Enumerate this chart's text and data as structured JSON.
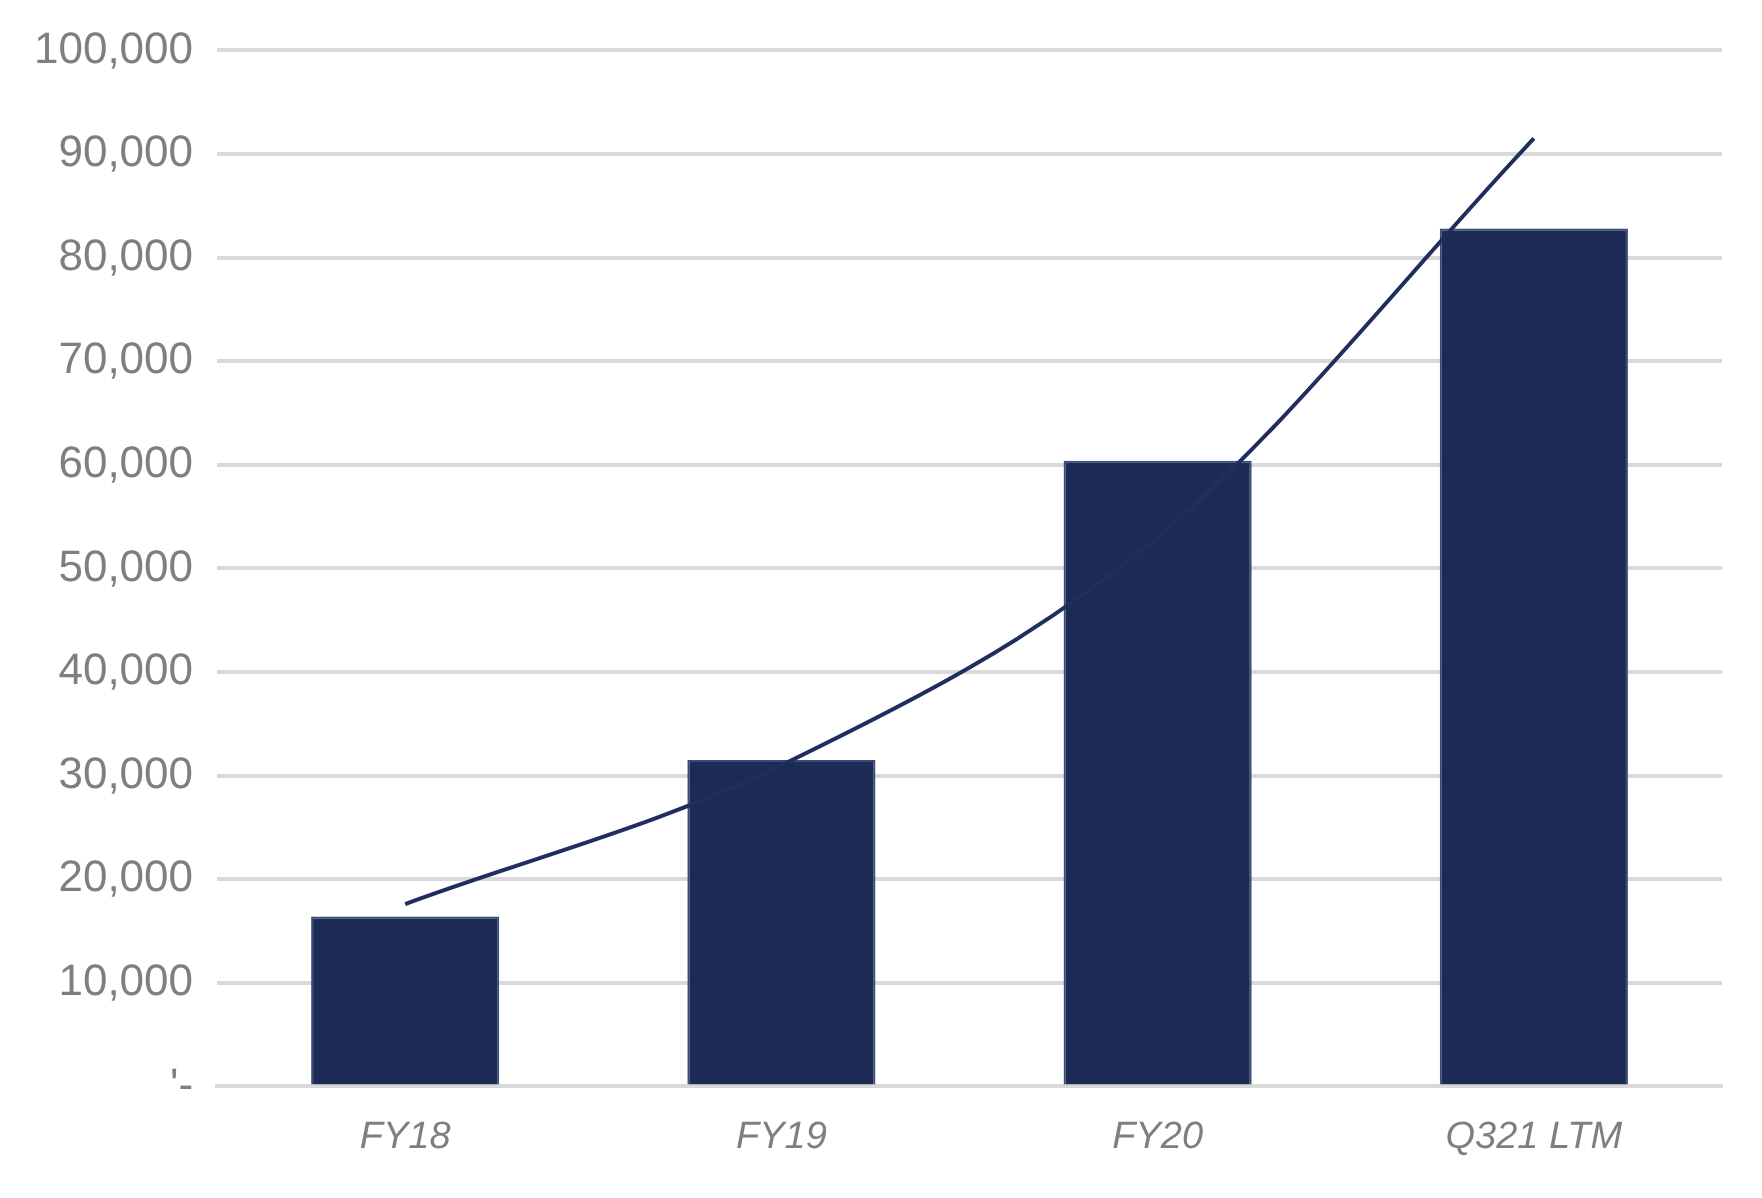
{
  "chart_data": {
    "type": "bar",
    "categories": [
      "FY18",
      "FY19",
      "FY20",
      "Q321 LTM"
    ],
    "series": [
      {
        "color": "#1c2b54",
        "values": [
          16400,
          31500,
          60400,
          82800
        ]
      },
      {
        "type": "line",
        "color": "#1f2d5f",
        "x": [
          "FY18",
          "FY19",
          "FY20",
          "Q321 LTM"
        ],
        "values": [
          17600,
          31000,
          53000,
          91500
        ]
      }
    ],
    "ylim": [
      0,
      100000
    ],
    "yticks": [
      {
        "value": 0,
        "label": "'-"
      },
      {
        "value": 10000,
        "label": "10,000"
      },
      {
        "value": 20000,
        "label": "20,000"
      },
      {
        "value": 30000,
        "label": "30,000"
      },
      {
        "value": 40000,
        "label": "40,000"
      },
      {
        "value": 50000,
        "label": "50,000"
      },
      {
        "value": 60000,
        "label": "60,000"
      },
      {
        "value": 70000,
        "label": "70,000"
      },
      {
        "value": 80000,
        "label": "80,000"
      },
      {
        "value": 90000,
        "label": "90,000"
      },
      {
        "value": 100000,
        "label": "100,000"
      }
    ],
    "grid": "y",
    "legend": false,
    "marker": "none",
    "line_style": "solid"
  }
}
